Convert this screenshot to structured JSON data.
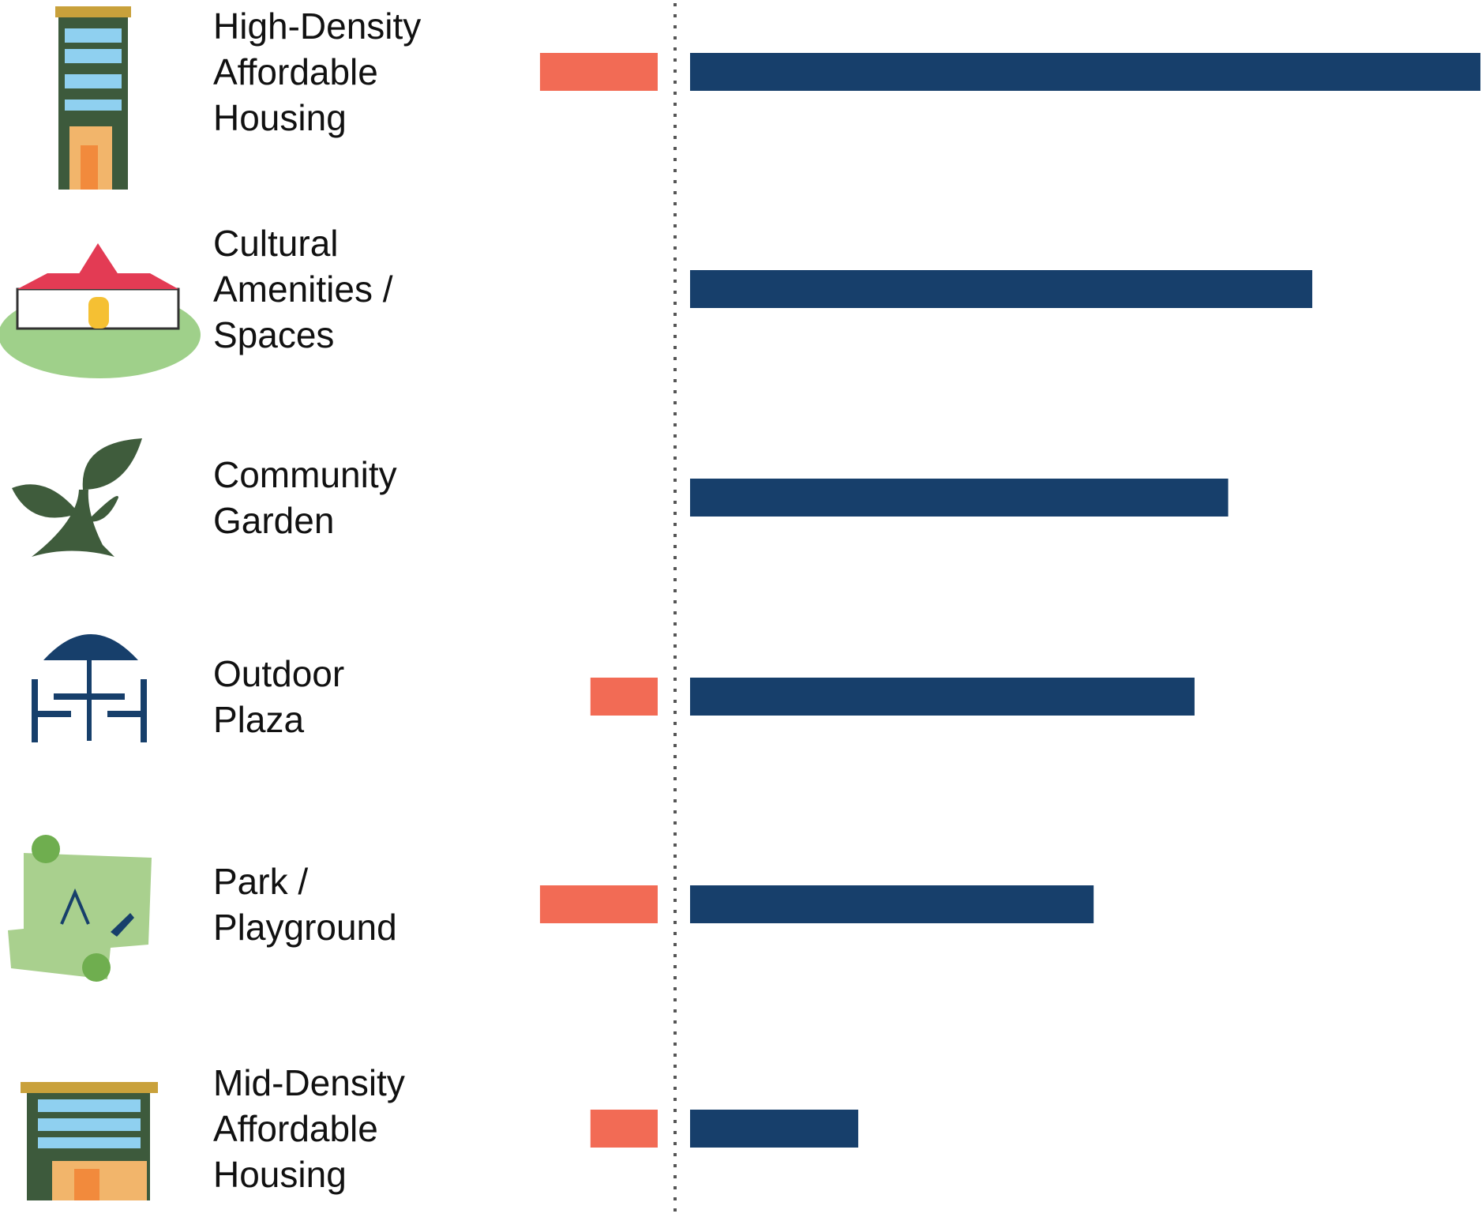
{
  "chart_data": {
    "type": "diverging-bar",
    "categories": [
      [
        "High-Density",
        "Affordable",
        "Housing"
      ],
      [
        "Cultural",
        "Amenities /",
        "Spaces"
      ],
      [
        "Community",
        "Garden"
      ],
      [
        "Outdoor",
        "Plaza"
      ],
      [
        "Park /",
        "Playground"
      ],
      [
        "Mid-Density",
        "Affordable",
        "Housing"
      ]
    ],
    "series": [
      {
        "color": "#173f6b",
        "values": [
          47,
          37,
          32,
          30,
          24,
          10
        ]
      },
      {
        "color": "#f26b55",
        "values": [
          -7,
          0,
          0,
          -4,
          -7,
          -4
        ]
      }
    ]
  }
}
